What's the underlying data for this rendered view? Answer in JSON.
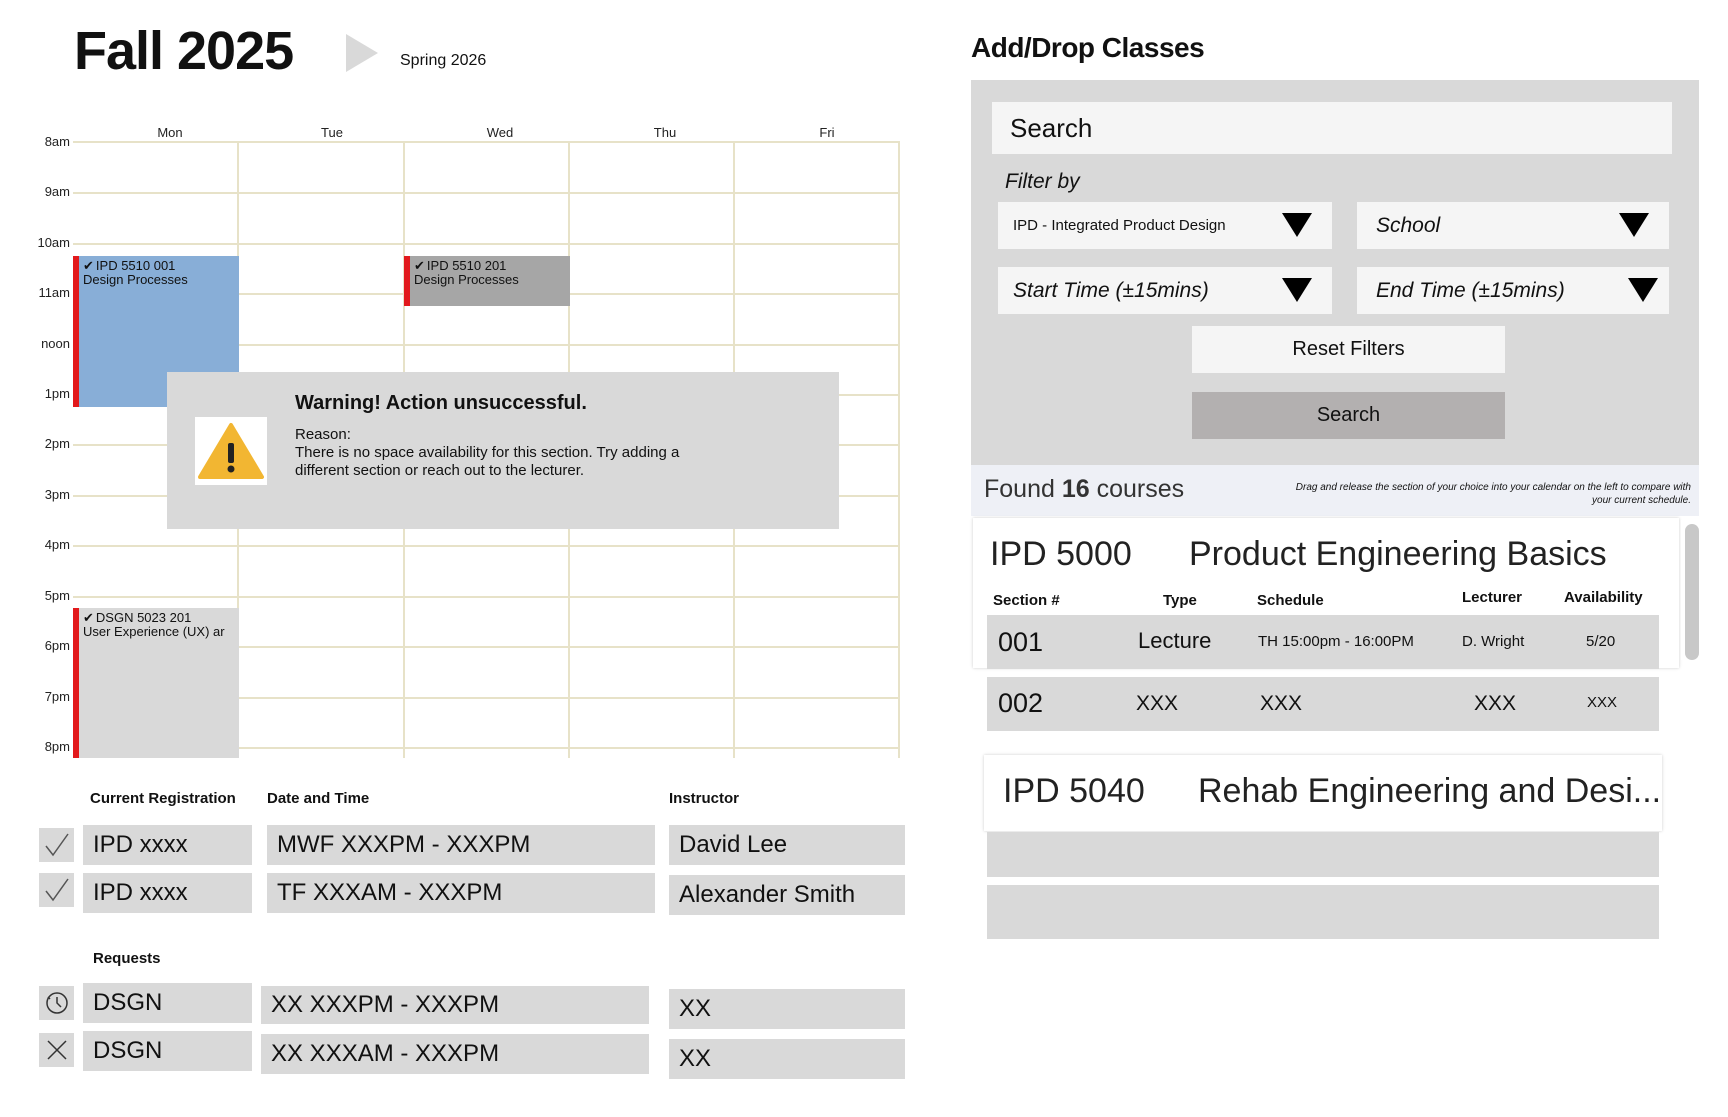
{
  "header": {
    "term_current": "Fall 2025",
    "term_next": "Spring 2026"
  },
  "calendar": {
    "days": [
      "Mon",
      "Tue",
      "Wed",
      "Thu",
      "Fri"
    ],
    "hours": [
      "8am",
      "9am",
      "10am",
      "11am",
      "noon",
      "1pm",
      "2pm",
      "3pm",
      "4pm",
      "5pm",
      "6pm",
      "7pm",
      "8pm"
    ],
    "events": [
      {
        "code": "IPD 5510 001",
        "title": "Design Processes",
        "day": "Mon",
        "start": "10:15am",
        "end": "1:15pm",
        "color": "#88aed7"
      },
      {
        "code": "IPD 5510 201",
        "title": "Design Processes",
        "day": "Wed",
        "start": "10:15am",
        "end": "11:15am",
        "color": "#a6a6a6"
      },
      {
        "code": "DSGN 5023 201",
        "title": "User Experience (UX) ar",
        "day": "Mon",
        "start": "5:15pm",
        "end": "8:15pm",
        "color": "#d9d9d9"
      }
    ],
    "accent_color": "#e2191c"
  },
  "warning": {
    "title": "Warning! Action unsuccessful.",
    "reason_label": "Reason:",
    "message": "There is no space availability for this section. Try adding a different section or reach out to the lecturer.",
    "icon": "warning-triangle-icon"
  },
  "registration": {
    "header": {
      "current": "Current Registration",
      "datetime": "Date and Time",
      "instructor": "Instructor"
    },
    "current": [
      {
        "status_icon": "checkmark-icon",
        "course": "IPD xxxx",
        "datetime": "MWF XXXPM - XXXPM",
        "instructor": "David Lee"
      },
      {
        "status_icon": "checkmark-icon",
        "course": "IPD xxxx",
        "datetime": "TF XXXAM - XXXPM",
        "instructor": "Alexander Smith"
      }
    ],
    "requests_label": "Requests",
    "requests": [
      {
        "status_icon": "clock-icon",
        "course": "DSGN",
        "datetime": "XX XXXPM - XXXPM",
        "instructor": "XX"
      },
      {
        "status_icon": "close-icon",
        "course": "DSGN",
        "datetime": "XX XXXAM - XXXPM",
        "instructor": "XX"
      }
    ]
  },
  "add_drop": {
    "title": "Add/Drop Classes",
    "search_placeholder": "Search",
    "filter_label": "Filter by",
    "filters": {
      "program": "IPD - Integrated Product Design",
      "school": "School",
      "start_time": "Start Time (±15mins)",
      "end_time": "End Time (±15mins)"
    },
    "reset_label": "Reset Filters",
    "search_label": "Search",
    "found_prefix": "Found ",
    "found_count": "16",
    "found_suffix": " courses",
    "hint": "Drag and release the section of your choice into your calendar on the left to compare with your current schedule.",
    "table_headers": {
      "section": "Section #",
      "type": "Type",
      "schedule": "Schedule",
      "lecturer": "Lecturer",
      "availability": "Availability"
    },
    "courses": [
      {
        "code": "IPD 5000",
        "name": "Product Engineering Basics",
        "sections": [
          {
            "section": "001",
            "type": "Lecture",
            "schedule": "TH 15:00pm - 16:00PM",
            "lecturer": "D. Wright",
            "availability": "5/20"
          },
          {
            "section": "002",
            "type": "XXX",
            "schedule": "XXX",
            "lecturer": "XXX",
            "availability": "XXX"
          }
        ]
      },
      {
        "code": "IPD 5040",
        "name": "Rehab Engineering and Desi..."
      }
    ]
  }
}
